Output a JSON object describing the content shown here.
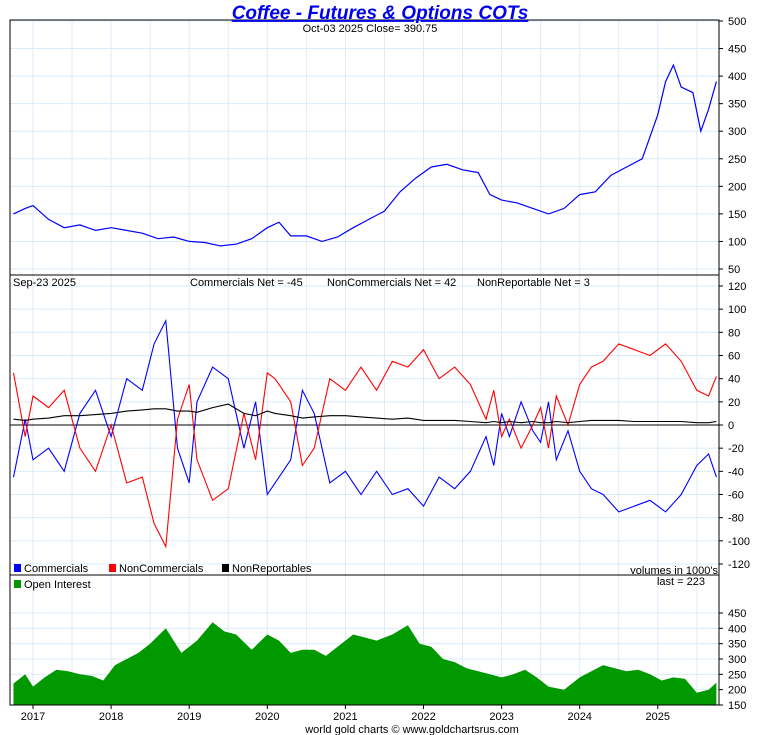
{
  "chart_data": [
    {
      "type": "line",
      "title": "Coffee - Futures & Options COTs",
      "subtitle": "Oct-03  2025   Close= 390.75",
      "ylim": [
        50,
        500
      ],
      "yticks": [
        50,
        100,
        150,
        200,
        250,
        300,
        350,
        400,
        450,
        500
      ],
      "grid": true,
      "series": [
        {
          "name": "Price",
          "color": "#0000ff",
          "x": [
            2016.75,
            2016.9,
            2017.0,
            2017.2,
            2017.4,
            2017.6,
            2017.8,
            2018.0,
            2018.2,
            2018.4,
            2018.6,
            2018.8,
            2019.0,
            2019.2,
            2019.4,
            2019.6,
            2019.8,
            2020.0,
            2020.15,
            2020.3,
            2020.5,
            2020.7,
            2020.9,
            2021.1,
            2021.3,
            2021.5,
            2021.7,
            2021.9,
            2022.1,
            2022.3,
            2022.5,
            2022.7,
            2022.85,
            2023.0,
            2023.2,
            2023.4,
            2023.6,
            2023.8,
            2024.0,
            2024.2,
            2024.4,
            2024.6,
            2024.8,
            2025.0,
            2025.1,
            2025.2,
            2025.3,
            2025.45,
            2025.55,
            2025.65,
            2025.75
          ],
          "values": [
            150,
            160,
            165,
            140,
            125,
            130,
            120,
            125,
            120,
            115,
            105,
            108,
            100,
            98,
            92,
            95,
            105,
            125,
            135,
            110,
            110,
            100,
            108,
            125,
            140,
            155,
            190,
            215,
            235,
            240,
            230,
            225,
            185,
            175,
            170,
            160,
            150,
            160,
            185,
            190,
            220,
            235,
            250,
            330,
            390,
            420,
            380,
            370,
            300,
            340,
            390
          ]
        }
      ]
    },
    {
      "type": "line",
      "title": "",
      "header": {
        "date": "Sep-23  2025",
        "commercials": "Commercials Net = -45",
        "noncommercials": "NonCommercials Net = 42",
        "nonreportable": "NonReportable Net = 3"
      },
      "ylim": [
        -120,
        120
      ],
      "yticks": [
        -120,
        -100,
        -80,
        -60,
        -40,
        -20,
        0,
        20,
        40,
        60,
        80,
        100,
        120
      ],
      "legend": [
        "Commercials",
        "NonCommercials",
        "NonReportables"
      ],
      "note": "volumes in 1000's",
      "x": [
        2016.75,
        2016.9,
        2017.0,
        2017.2,
        2017.4,
        2017.6,
        2017.8,
        2018.0,
        2018.2,
        2018.4,
        2018.55,
        2018.7,
        2018.85,
        2019.0,
        2019.1,
        2019.3,
        2019.5,
        2019.7,
        2019.85,
        2020.0,
        2020.1,
        2020.3,
        2020.45,
        2020.6,
        2020.8,
        2021.0,
        2021.2,
        2021.4,
        2021.6,
        2021.8,
        2022.0,
        2022.2,
        2022.4,
        2022.6,
        2022.8,
        2022.9,
        2023.0,
        2023.1,
        2023.25,
        2023.4,
        2023.5,
        2023.6,
        2023.7,
        2023.85,
        2024.0,
        2024.15,
        2024.3,
        2024.5,
        2024.7,
        2024.9,
        2025.1,
        2025.3,
        2025.5,
        2025.65,
        2025.75
      ],
      "series": [
        {
          "name": "Commercials",
          "color": "#0000ff",
          "values": [
            -45,
            5,
            -30,
            -20,
            -40,
            10,
            30,
            -10,
            40,
            30,
            70,
            90,
            -20,
            -50,
            20,
            50,
            40,
            -20,
            20,
            -60,
            -50,
            -30,
            30,
            10,
            -50,
            -40,
            -60,
            -40,
            -60,
            -55,
            -70,
            -45,
            -55,
            -40,
            -10,
            -35,
            10,
            -10,
            20,
            -5,
            -15,
            20,
            -30,
            -5,
            -40,
            -55,
            -60,
            -75,
            -70,
            -65,
            -75,
            -60,
            -35,
            -25,
            -45
          ]
        },
        {
          "name": "NonCommercials",
          "color": "#ff0000",
          "values": [
            45,
            -10,
            25,
            15,
            30,
            -20,
            -40,
            0,
            -50,
            -45,
            -85,
            -105,
            5,
            35,
            -30,
            -65,
            -55,
            10,
            -30,
            45,
            40,
            20,
            -35,
            -20,
            40,
            30,
            50,
            30,
            55,
            50,
            65,
            40,
            50,
            35,
            5,
            30,
            -10,
            5,
            -20,
            0,
            15,
            -20,
            25,
            0,
            35,
            50,
            55,
            70,
            65,
            60,
            70,
            55,
            30,
            25,
            42
          ]
        },
        {
          "name": "NonReportables",
          "color": "#000000",
          "values": [
            5,
            4,
            5,
            6,
            8,
            8,
            9,
            10,
            12,
            13,
            14,
            14,
            12,
            12,
            11,
            15,
            18,
            10,
            8,
            12,
            10,
            8,
            6,
            7,
            8,
            8,
            7,
            6,
            5,
            6,
            4,
            4,
            4,
            3,
            2,
            3,
            2,
            3,
            2,
            3,
            2,
            2,
            3,
            2,
            3,
            4,
            4,
            4,
            3,
            3,
            3,
            3,
            2,
            2,
            3
          ]
        }
      ]
    },
    {
      "type": "area",
      "legend": [
        "Open Interest"
      ],
      "note": "last = 223",
      "ylim": [
        150,
        450
      ],
      "yticks": [
        150,
        200,
        250,
        300,
        350,
        400,
        450
      ],
      "xticks": [
        "2017",
        "2018",
        "2019",
        "2020",
        "2021",
        "2022",
        "2023",
        "2024",
        "2025"
      ],
      "series": [
        {
          "name": "Open Interest",
          "color": "#009900",
          "x": [
            2016.75,
            2016.9,
            2017.0,
            2017.15,
            2017.3,
            2017.45,
            2017.6,
            2017.75,
            2017.9,
            2018.05,
            2018.2,
            2018.35,
            2018.5,
            2018.7,
            2018.9,
            2019.1,
            2019.3,
            2019.45,
            2019.6,
            2019.8,
            2020.0,
            2020.15,
            2020.3,
            2020.45,
            2020.6,
            2020.75,
            2020.9,
            2021.1,
            2021.25,
            2021.4,
            2021.6,
            2021.8,
            2021.95,
            2022.1,
            2022.25,
            2022.4,
            2022.55,
            2022.7,
            2022.85,
            2023.0,
            2023.15,
            2023.3,
            2023.45,
            2023.6,
            2023.8,
            2024.0,
            2024.15,
            2024.3,
            2024.45,
            2024.6,
            2024.75,
            2024.9,
            2025.05,
            2025.2,
            2025.35,
            2025.5,
            2025.65,
            2025.75
          ],
          "values": [
            220,
            250,
            210,
            240,
            265,
            260,
            250,
            245,
            230,
            280,
            300,
            320,
            350,
            400,
            320,
            360,
            420,
            390,
            380,
            330,
            380,
            360,
            320,
            330,
            330,
            310,
            340,
            380,
            370,
            360,
            380,
            410,
            350,
            340,
            300,
            290,
            270,
            260,
            250,
            240,
            250,
            265,
            240,
            210,
            200,
            240,
            260,
            280,
            270,
            260,
            265,
            250,
            230,
            240,
            235,
            190,
            200,
            223
          ]
        }
      ]
    }
  ],
  "footer": "world gold charts © www.goldchartsrus.com"
}
